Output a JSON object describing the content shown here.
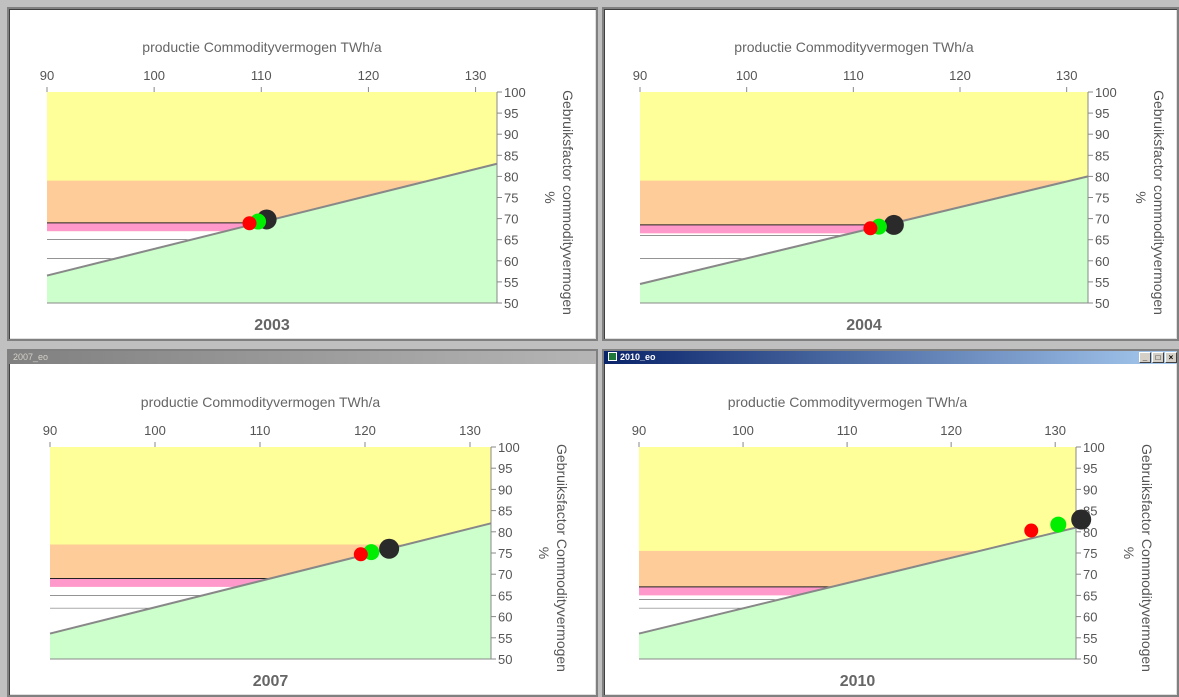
{
  "windows": [
    {
      "title": "",
      "active": false
    },
    {
      "title": "",
      "active": false
    },
    {
      "title": "2007_eo",
      "active": false
    },
    {
      "title": "2010_eo",
      "active": true,
      "buttons": [
        "_",
        "□",
        "×"
      ]
    }
  ],
  "chart_data": [
    {
      "type": "scatter",
      "title": "2003",
      "xlabel": "productie Commodityvermogen TWh/a",
      "ylabel": "Gebruiksfactor commodityvermogen",
      "y2label": "%",
      "xlim": [
        90,
        132
      ],
      "ylim": [
        50,
        100
      ],
      "x_ticks": [
        90,
        100,
        110,
        120,
        130
      ],
      "y_ticks": [
        50,
        55,
        60,
        65,
        70,
        75,
        80,
        85,
        90,
        95,
        100
      ],
      "bands": {
        "orange_top": 79,
        "pink_top": 69,
        "pink_bottom": 67,
        "white_line": 65,
        "white_bottom": 60.5
      },
      "boundary_line": {
        "x": [
          90,
          132
        ],
        "y": [
          56.5,
          83
        ]
      },
      "points": [
        {
          "x": 110.5,
          "y": 69.8,
          "color": "#2a2a2a"
        },
        {
          "x": 109.7,
          "y": 69.3,
          "color": "#00ee00"
        },
        {
          "x": 108.9,
          "y": 68.9,
          "color": "#ff0000"
        }
      ]
    },
    {
      "type": "scatter",
      "title": "2004",
      "xlabel": "productie Commodityvermogen TWh/a",
      "ylabel": "Gebruiksfactor commodityvermogen",
      "y2label": "%",
      "xlim": [
        90,
        132
      ],
      "ylim": [
        50,
        100
      ],
      "x_ticks": [
        90,
        100,
        110,
        120,
        130
      ],
      "y_ticks": [
        50,
        55,
        60,
        65,
        70,
        75,
        80,
        85,
        90,
        95,
        100
      ],
      "bands": {
        "orange_top": 79,
        "pink_top": 68.5,
        "pink_bottom": 66.5,
        "white_line": 66,
        "white_bottom": 60.5
      },
      "boundary_line": {
        "x": [
          90,
          132
        ],
        "y": [
          54.5,
          80
        ]
      },
      "points": [
        {
          "x": 113.8,
          "y": 68.5,
          "color": "#2a2a2a"
        },
        {
          "x": 112.4,
          "y": 68.1,
          "color": "#00ee00"
        },
        {
          "x": 111.6,
          "y": 67.7,
          "color": "#ff0000"
        }
      ]
    },
    {
      "type": "scatter",
      "title": "2007",
      "xlabel": "productie Commodityvermogen TWh/a",
      "ylabel": "Gebruiksfactor Commodityvermogen",
      "y2label": "%",
      "xlim": [
        90,
        132
      ],
      "ylim": [
        50,
        100
      ],
      "x_ticks": [
        90,
        100,
        110,
        120,
        130
      ],
      "y_ticks": [
        50,
        55,
        60,
        65,
        70,
        75,
        80,
        85,
        90,
        95,
        100
      ],
      "bands": {
        "orange_top": 77,
        "pink_top": 69,
        "pink_bottom": 67,
        "white_line": 65,
        "white_bottom": 62
      },
      "boundary_line": {
        "x": [
          90,
          132
        ],
        "y": [
          56,
          82
        ]
      },
      "points": [
        {
          "x": 122.3,
          "y": 76,
          "color": "#2a2a2a"
        },
        {
          "x": 120.6,
          "y": 75.2,
          "color": "#00ee00"
        },
        {
          "x": 119.6,
          "y": 74.7,
          "color": "#ff0000"
        }
      ]
    },
    {
      "type": "scatter",
      "title": "2010",
      "xlabel": "productie Commodityvermogen TWh/a",
      "ylabel": "Gebruiksfactor Commodityvermogen",
      "y2label": "%",
      "xlim": [
        90,
        132
      ],
      "ylim": [
        50,
        100
      ],
      "x_ticks": [
        90,
        100,
        110,
        120,
        130
      ],
      "y_ticks": [
        50,
        55,
        60,
        65,
        70,
        75,
        80,
        85,
        90,
        95,
        100
      ],
      "bands": {
        "orange_top": 75.5,
        "pink_top": 67,
        "pink_bottom": 65,
        "white_line": 64,
        "white_bottom": 62
      },
      "boundary_line": {
        "x": [
          90,
          132
        ],
        "y": [
          56,
          81
        ]
      },
      "points": [
        {
          "x": 132.5,
          "y": 82.9,
          "color": "#2a2a2a"
        },
        {
          "x": 130.3,
          "y": 81.7,
          "color": "#00ee00"
        },
        {
          "x": 127.7,
          "y": 80.3,
          "color": "#ff0000"
        }
      ]
    }
  ]
}
